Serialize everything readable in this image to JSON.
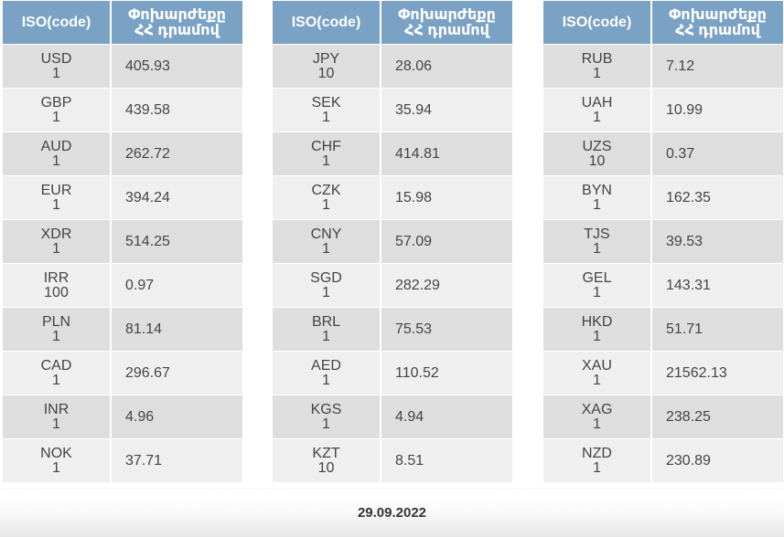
{
  "header": {
    "iso_label": "ISO(code)",
    "rate_label_line1": "Փոխարժեքը",
    "rate_label_line2": "ՀՀ դրամով"
  },
  "tables": [
    {
      "rows": [
        {
          "code": "USD",
          "unit": "1",
          "rate": "405.93"
        },
        {
          "code": "GBP",
          "unit": "1",
          "rate": "439.58"
        },
        {
          "code": "AUD",
          "unit": "1",
          "rate": "262.72"
        },
        {
          "code": "EUR",
          "unit": "1",
          "rate": "394.24"
        },
        {
          "code": "XDR",
          "unit": "1",
          "rate": "514.25"
        },
        {
          "code": "IRR",
          "unit": "100",
          "rate": "0.97"
        },
        {
          "code": "PLN",
          "unit": "1",
          "rate": "81.14"
        },
        {
          "code": "CAD",
          "unit": "1",
          "rate": "296.67"
        },
        {
          "code": "INR",
          "unit": "1",
          "rate": "4.96"
        },
        {
          "code": "NOK",
          "unit": "1",
          "rate": "37.71"
        }
      ]
    },
    {
      "rows": [
        {
          "code": "JPY",
          "unit": "10",
          "rate": "28.06"
        },
        {
          "code": "SEK",
          "unit": "1",
          "rate": "35.94"
        },
        {
          "code": "CHF",
          "unit": "1",
          "rate": "414.81"
        },
        {
          "code": "CZK",
          "unit": "1",
          "rate": "15.98"
        },
        {
          "code": "CNY",
          "unit": "1",
          "rate": "57.09"
        },
        {
          "code": "SGD",
          "unit": "1",
          "rate": "282.29"
        },
        {
          "code": "BRL",
          "unit": "1",
          "rate": "75.53"
        },
        {
          "code": "AED",
          "unit": "1",
          "rate": "110.52"
        },
        {
          "code": "KGS",
          "unit": "1",
          "rate": "4.94"
        },
        {
          "code": "KZT",
          "unit": "10",
          "rate": "8.51"
        }
      ]
    },
    {
      "rows": [
        {
          "code": "RUB",
          "unit": "1",
          "rate": "7.12"
        },
        {
          "code": "UAH",
          "unit": "1",
          "rate": "10.99"
        },
        {
          "code": "UZS",
          "unit": "10",
          "rate": "0.37"
        },
        {
          "code": "BYN",
          "unit": "1",
          "rate": "162.35"
        },
        {
          "code": "TJS",
          "unit": "1",
          "rate": "39.53"
        },
        {
          "code": "GEL",
          "unit": "1",
          "rate": "143.31"
        },
        {
          "code": "HKD",
          "unit": "1",
          "rate": "51.71"
        },
        {
          "code": "XAU",
          "unit": "1",
          "rate": "21562.13"
        },
        {
          "code": "XAG",
          "unit": "1",
          "rate": "238.25"
        },
        {
          "code": "NZD",
          "unit": "1",
          "rate": "230.89"
        }
      ]
    }
  ],
  "footer": {
    "date": "29.09.2022"
  },
  "colors": {
    "header_bg": "#7aa2c5",
    "row_odd_bg": "#dedede",
    "row_even_bg": "#efefef",
    "text": "#444444"
  }
}
